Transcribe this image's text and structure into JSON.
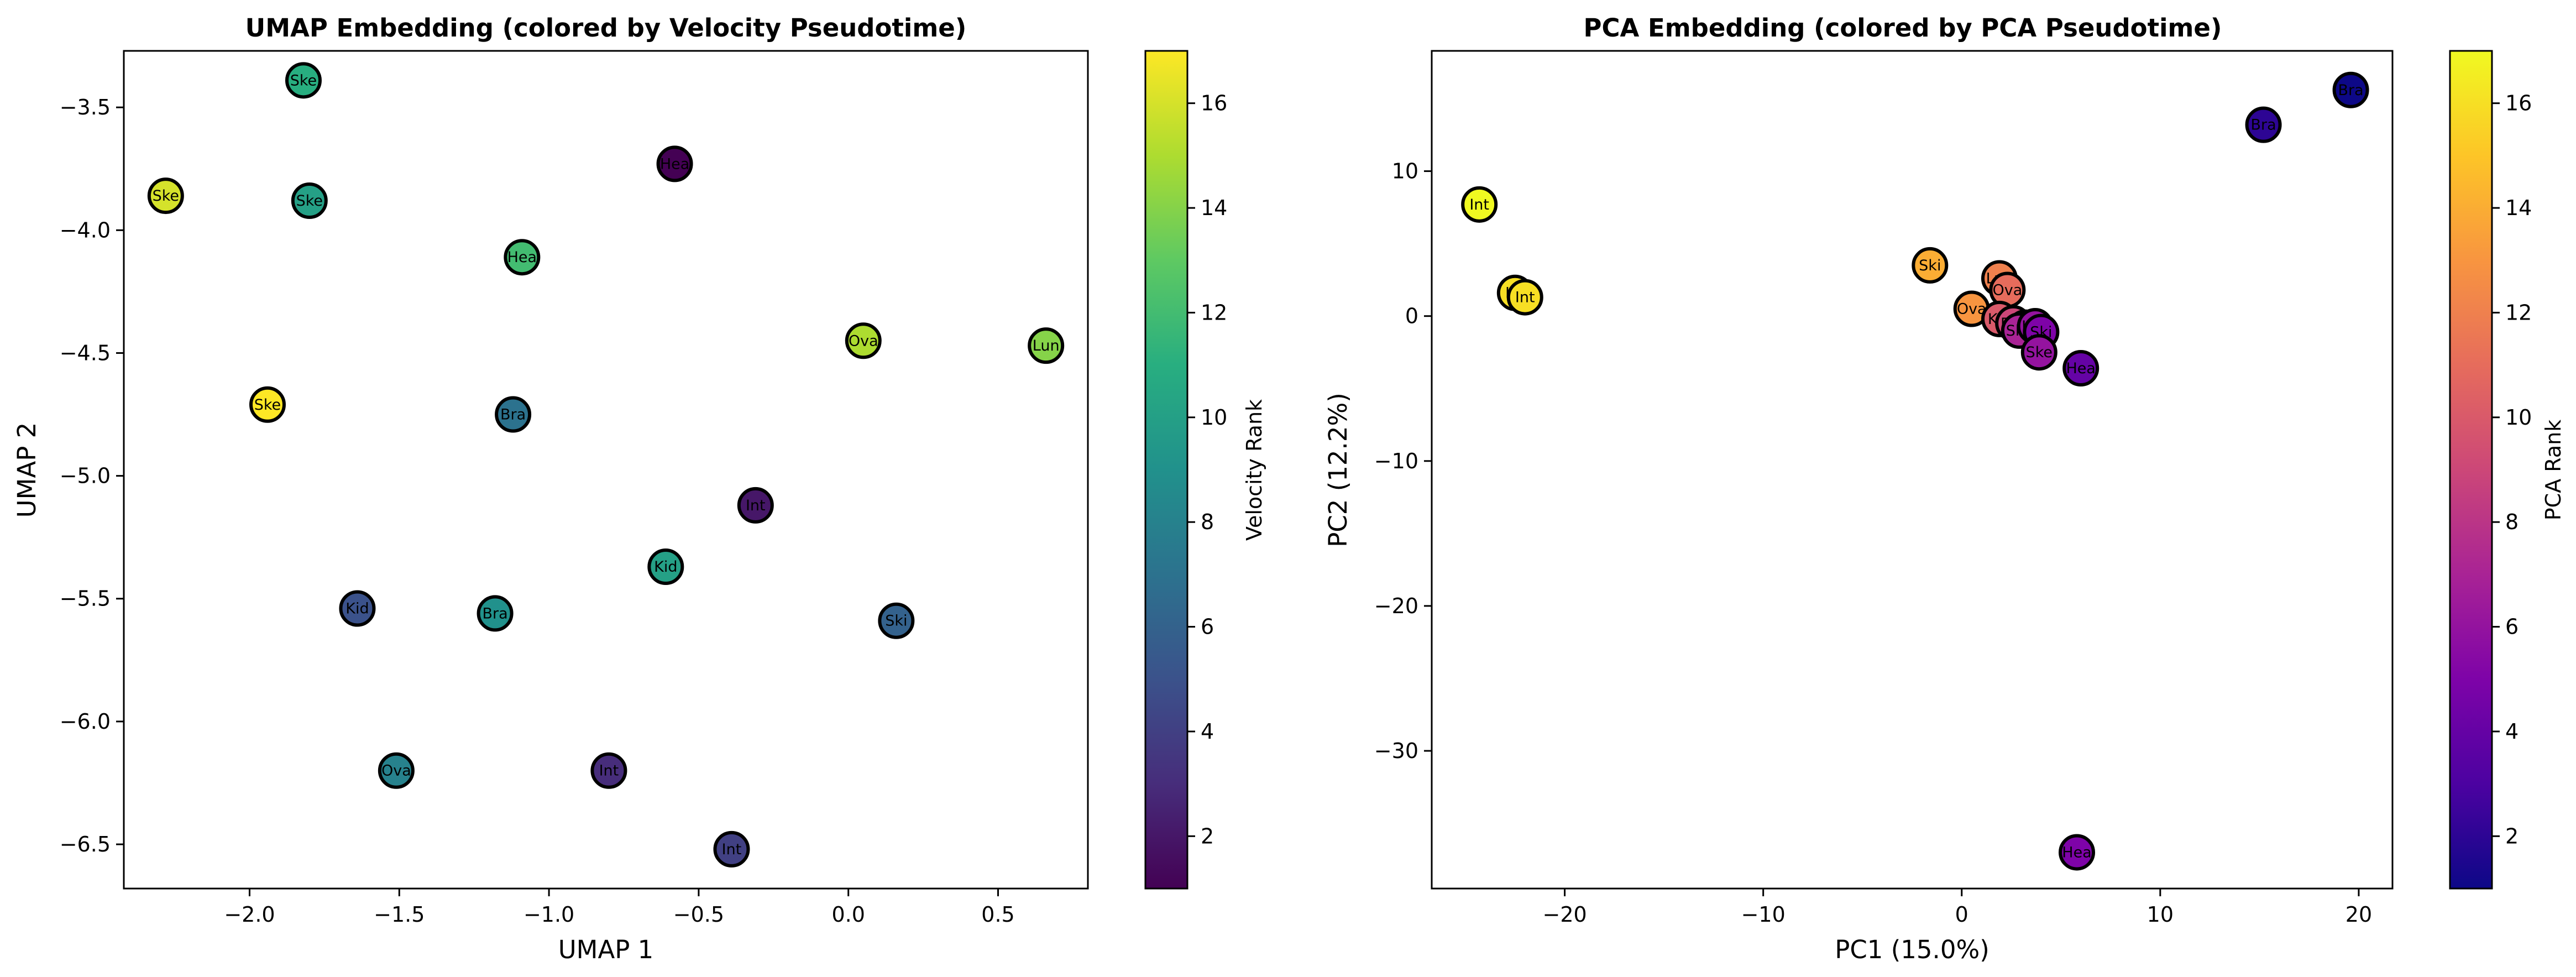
{
  "chart_data": [
    {
      "type": "scatter",
      "title": "UMAP Embedding (colored by Velocity Pseudotime)",
      "xlabel": "UMAP 1",
      "ylabel": "UMAP 2",
      "xlim": [
        -2.42,
        0.8
      ],
      "ylim": [
        -6.68,
        -3.27
      ],
      "xticks": [
        -2.0,
        -1.5,
        -1.0,
        -0.5,
        0.0,
        0.5
      ],
      "xtick_labels": [
        "−2.0",
        "−1.5",
        "−1.0",
        "−0.5",
        "0.0",
        "0.5"
      ],
      "yticks": [
        -3.5,
        -4.0,
        -4.5,
        -5.0,
        -5.5,
        -6.0,
        -6.5
      ],
      "ytick_labels": [
        "−3.5",
        "−4.0",
        "−4.5",
        "−5.0",
        "−5.5",
        "−6.0",
        "−6.5"
      ],
      "grid": false,
      "colormap": "viridis",
      "colorbar": {
        "label": "Velocity Rank",
        "range": [
          1,
          17
        ],
        "ticks": [
          2,
          4,
          6,
          8,
          10,
          12,
          14,
          16
        ],
        "tick_labels": [
          "2",
          "4",
          "6",
          "8",
          "10",
          "12",
          "14",
          "16"
        ]
      },
      "points": [
        {
          "x": -1.82,
          "y": -3.39,
          "value": 11,
          "label": "Ske"
        },
        {
          "x": -2.28,
          "y": -3.86,
          "value": 16,
          "label": "Ske"
        },
        {
          "x": -1.8,
          "y": -3.88,
          "value": 10,
          "label": "Ske"
        },
        {
          "x": -0.58,
          "y": -3.73,
          "value": 1,
          "label": "Hea"
        },
        {
          "x": -1.09,
          "y": -4.11,
          "value": 12,
          "label": "Hea"
        },
        {
          "x": 0.05,
          "y": -4.45,
          "value": 15,
          "label": "Ova"
        },
        {
          "x": 0.66,
          "y": -4.47,
          "value": 14,
          "label": "Lun"
        },
        {
          "x": -1.94,
          "y": -4.71,
          "value": 17,
          "label": "Ske"
        },
        {
          "x": -1.12,
          "y": -4.75,
          "value": 7,
          "label": "Bra"
        },
        {
          "x": -0.31,
          "y": -5.12,
          "value": 2,
          "label": "Int"
        },
        {
          "x": -0.61,
          "y": -5.37,
          "value": 10,
          "label": "Kid"
        },
        {
          "x": -1.64,
          "y": -5.54,
          "value": 5,
          "label": "Kid"
        },
        {
          "x": -1.18,
          "y": -5.56,
          "value": 9,
          "label": "Bra"
        },
        {
          "x": 0.16,
          "y": -5.59,
          "value": 6,
          "label": "Ski"
        },
        {
          "x": -1.51,
          "y": -6.2,
          "value": 8,
          "label": "Ova"
        },
        {
          "x": -0.8,
          "y": -6.2,
          "value": 3,
          "label": "Int"
        },
        {
          "x": -0.39,
          "y": -6.52,
          "value": 4,
          "label": "Int"
        }
      ]
    },
    {
      "type": "scatter",
      "title": "PCA Embedding (colored by PCA Pseudotime)",
      "xlabel": "PC1 (15.0%)",
      "ylabel": "PC2 (12.2%)",
      "xlim": [
        -26.7,
        21.7
      ],
      "ylim": [
        -39.5,
        18.3
      ],
      "xticks": [
        -20,
        -10,
        0,
        10,
        20
      ],
      "xtick_labels": [
        "−20",
        "−10",
        "0",
        "10",
        "20"
      ],
      "yticks": [
        10,
        0,
        -10,
        -20,
        -30
      ],
      "ytick_labels": [
        "10",
        "0",
        "−10",
        "−20",
        "−30"
      ],
      "grid": false,
      "colormap": "plasma",
      "colorbar": {
        "label": "PCA Rank",
        "range": [
          1,
          17
        ],
        "ticks": [
          2,
          4,
          6,
          8,
          10,
          12,
          14,
          16
        ],
        "tick_labels": [
          "2",
          "4",
          "6",
          "8",
          "10",
          "12",
          "14",
          "16"
        ]
      },
      "points": [
        {
          "x": 19.6,
          "y": 15.6,
          "value": 1,
          "label": "Bra"
        },
        {
          "x": 15.2,
          "y": 13.2,
          "value": 2,
          "label": "Bra"
        },
        {
          "x": -24.3,
          "y": 7.7,
          "value": 17,
          "label": "Int"
        },
        {
          "x": -22.5,
          "y": 1.6,
          "value": 16,
          "label": "Int"
        },
        {
          "x": -22.0,
          "y": 1.3,
          "value": 16,
          "label": "Int"
        },
        {
          "x": -1.6,
          "y": 3.5,
          "value": 14,
          "label": "Ski"
        },
        {
          "x": 1.9,
          "y": 2.6,
          "value": 12,
          "label": "Lun"
        },
        {
          "x": 2.3,
          "y": 1.8,
          "value": 11,
          "label": "Ova"
        },
        {
          "x": 0.5,
          "y": 0.5,
          "value": 13,
          "label": "Ova"
        },
        {
          "x": 1.9,
          "y": -0.2,
          "value": 10,
          "label": "Kid"
        },
        {
          "x": 2.6,
          "y": -0.5,
          "value": 9,
          "label": "Bra"
        },
        {
          "x": 3.2,
          "y": -0.8,
          "value": 8,
          "label": "Hea"
        },
        {
          "x": 2.9,
          "y": -1.0,
          "value": 7,
          "label": "Ske"
        },
        {
          "x": 3.7,
          "y": -0.7,
          "value": 6,
          "label": "Lun"
        },
        {
          "x": 4.0,
          "y": -1.1,
          "value": 5,
          "label": "Ski"
        },
        {
          "x": 3.9,
          "y": -2.5,
          "value": 6,
          "label": "Ske"
        },
        {
          "x": 6.0,
          "y": -3.6,
          "value": 4,
          "label": "Hea"
        },
        {
          "x": 5.8,
          "y": -37.0,
          "value": 5,
          "label": "Hea"
        }
      ]
    }
  ]
}
